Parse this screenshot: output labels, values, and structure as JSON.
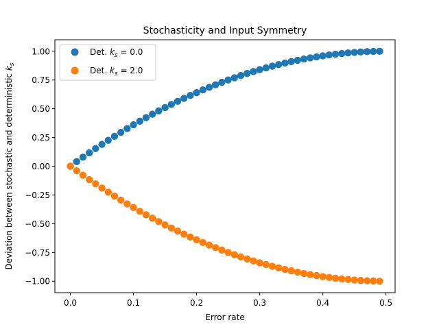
{
  "chart_data": {
    "type": "scatter",
    "title": "Stochasticity and Input Symmetry",
    "xlabel": "Error rate",
    "ylabel_prefix": "Deviation between stochastic and deterministic ",
    "ylabel_symbol": "k",
    "ylabel_subscript": "s",
    "xlim": [
      -0.0245,
      0.5145
    ],
    "ylim": [
      -1.1,
      1.1
    ],
    "x_ticks": [
      0.0,
      0.1,
      0.2,
      0.3,
      0.4,
      0.5
    ],
    "x_tick_labels": [
      "0.0",
      "0.1",
      "0.2",
      "0.3",
      "0.4",
      "0.5"
    ],
    "y_ticks": [
      -1.0,
      -0.75,
      -0.5,
      -0.25,
      0.0,
      0.25,
      0.5,
      0.75,
      1.0
    ],
    "y_tick_labels": [
      "−1.00",
      "−0.75",
      "−0.50",
      "−0.25",
      "0.00",
      "0.25",
      "0.50",
      "0.75",
      "1.00"
    ],
    "grid": false,
    "legend_position": "top-left",
    "x": [
      0.0,
      0.01,
      0.02,
      0.03,
      0.04,
      0.05,
      0.06,
      0.07,
      0.08,
      0.09,
      0.1,
      0.11,
      0.12,
      0.13,
      0.14,
      0.15,
      0.16,
      0.17,
      0.18,
      0.19,
      0.2,
      0.21,
      0.22,
      0.23,
      0.24,
      0.25,
      0.26,
      0.27,
      0.28,
      0.29,
      0.3,
      0.31,
      0.32,
      0.33,
      0.34,
      0.35,
      0.36,
      0.37,
      0.38,
      0.39,
      0.4,
      0.41,
      0.42,
      0.43,
      0.44,
      0.45,
      0.46,
      0.47,
      0.48,
      0.49
    ],
    "series": [
      {
        "name": "Det. k_s = 0.0",
        "legend_prefix": "Det. ",
        "legend_symbol": "k",
        "legend_subscript": "s",
        "legend_suffix": " = 0.0",
        "color": "#1f77b4",
        "values": [
          0.0,
          0.0396,
          0.0784,
          0.1164,
          0.1536,
          0.19,
          0.2256,
          0.2604,
          0.2944,
          0.3276,
          0.36,
          0.3916,
          0.4224,
          0.4524,
          0.4816,
          0.51,
          0.5376,
          0.5644,
          0.5904,
          0.6156,
          0.64,
          0.6636,
          0.6864,
          0.7084,
          0.7296,
          0.75,
          0.7696,
          0.7884,
          0.8064,
          0.8236,
          0.84,
          0.8556,
          0.8704,
          0.8844,
          0.8976,
          0.91,
          0.9216,
          0.9324,
          0.9424,
          0.9516,
          0.96,
          0.9676,
          0.9744,
          0.9804,
          0.9856,
          0.99,
          0.9936,
          0.9964,
          0.9984,
          0.9996
        ]
      },
      {
        "name": "Det. k_s = 2.0",
        "legend_prefix": "Det. ",
        "legend_symbol": "k",
        "legend_subscript": "s",
        "legend_suffix": " = 2.0",
        "color": "#ff7f0e",
        "values": [
          0.0,
          -0.0396,
          -0.0784,
          -0.1164,
          -0.1536,
          -0.19,
          -0.2256,
          -0.2604,
          -0.2944,
          -0.3276,
          -0.36,
          -0.3916,
          -0.4224,
          -0.4524,
          -0.4816,
          -0.51,
          -0.5376,
          -0.5644,
          -0.5904,
          -0.6156,
          -0.64,
          -0.6636,
          -0.6864,
          -0.7084,
          -0.7296,
          -0.75,
          -0.7696,
          -0.7884,
          -0.8064,
          -0.8236,
          -0.84,
          -0.8556,
          -0.8704,
          -0.8844,
          -0.8976,
          -0.91,
          -0.9216,
          -0.9324,
          -0.9424,
          -0.9516,
          -0.96,
          -0.9676,
          -0.9744,
          -0.9804,
          -0.9856,
          -0.99,
          -0.9936,
          -0.9964,
          -0.9984,
          -0.9996
        ]
      }
    ]
  }
}
